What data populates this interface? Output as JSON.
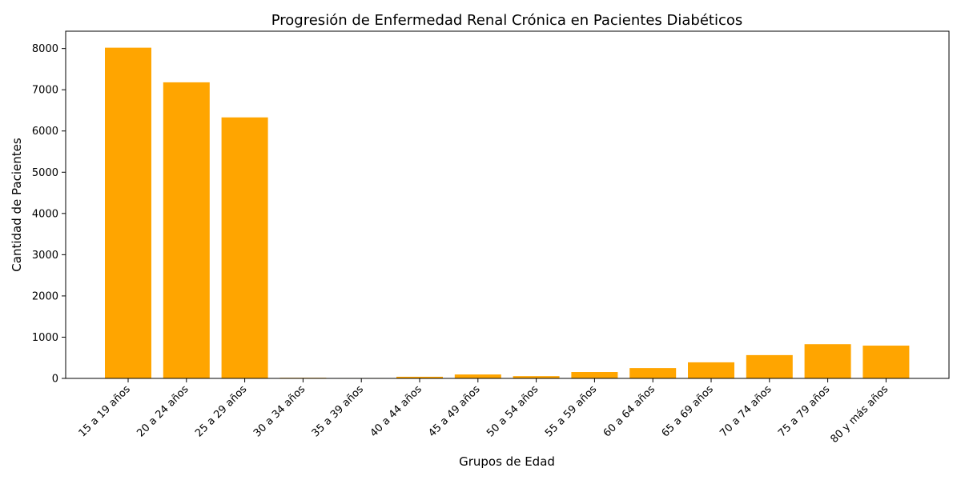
{
  "chart_data": {
    "type": "bar",
    "title": "Progresión de Enfermedad Renal Crónica en Pacientes Diabéticos",
    "xlabel": "Grupos de Edad",
    "ylabel": "Cantidad de Pacientes",
    "categories": [
      "15 a 19 años",
      "20 a 24 años",
      "25 a 29 años",
      "30 a 34 años",
      "35 a 39 años",
      "40 a 44 años",
      "45 a 49 años",
      "50 a 54 años",
      "55 a 59 años",
      "60 a 64 años",
      "65 a 69 años",
      "70 a 74 años",
      "75 a 79 años",
      "80 y más años"
    ],
    "values": [
      8020,
      7180,
      6330,
      15,
      10,
      40,
      95,
      55,
      155,
      250,
      390,
      565,
      830,
      795
    ],
    "ylim": [
      0,
      8420
    ],
    "yticks": [
      0,
      1000,
      2000,
      3000,
      4000,
      5000,
      6000,
      7000,
      8000
    ],
    "bar_color": "#FFA500",
    "grid": false,
    "legend": "none"
  }
}
